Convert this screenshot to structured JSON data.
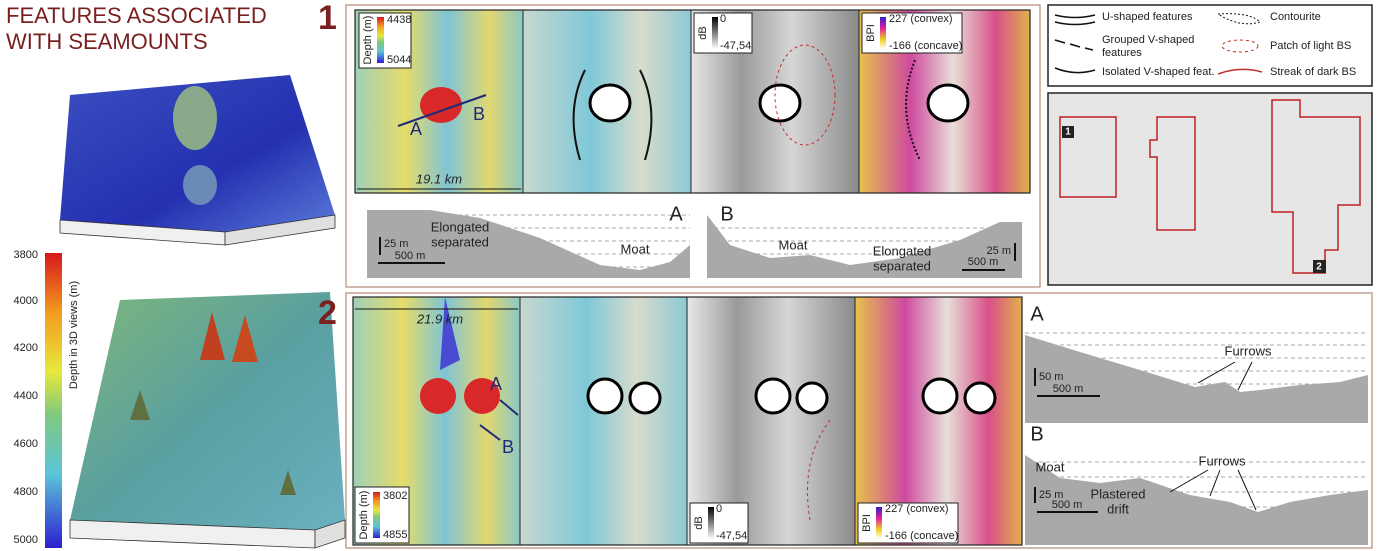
{
  "title_lines": [
    "FEATURES ASSOCIATED",
    "WITH SEAMOUNTS"
  ],
  "colorbar": {
    "label": "Depth in 3D views (m)",
    "ticks": [
      "3800",
      "4000",
      "4200",
      "4400",
      "4600",
      "4800",
      "5000"
    ]
  },
  "panel1": {
    "number": "1",
    "scale": "19.1 km",
    "depth_legend": {
      "label": "Depth (m)",
      "max": "4438",
      "min": "5044"
    },
    "profile_ends": [
      "A",
      "B"
    ],
    "backscatter_legend": {
      "label": "dB",
      "max": "0",
      "min": "-47,54"
    },
    "bpi_legend": {
      "label": "BPI",
      "max": "227 (convex)",
      "min": "-166 (concave)"
    },
    "profile_a": {
      "letter": "A",
      "vscale": "25 m",
      "hscale": "500 m",
      "labels": [
        "Elongated",
        "separated",
        "Moat"
      ]
    },
    "profile_b": {
      "letter": "B",
      "vscale": "25 m",
      "hscale": "500 m",
      "labels": [
        "Moat",
        "Elongated",
        "separated"
      ]
    }
  },
  "panel2": {
    "number": "2",
    "scale": "21.9 km",
    "depth_legend": {
      "label": "Depth (m)",
      "max": "3802",
      "min": "4855"
    },
    "profile_ends": [
      "A",
      "B"
    ],
    "backscatter_legend": {
      "label": "dB",
      "max": "0",
      "min": "-47,54"
    },
    "bpi_legend": {
      "label": "BPI",
      "max": "227 (convex)",
      "min": "-166 (concave)"
    },
    "profile_a": {
      "letter": "A",
      "vscale": "50 m",
      "hscale": "500 m",
      "labels": [
        "Furrows"
      ]
    },
    "profile_b": {
      "letter": "B",
      "vscale": "25 m",
      "hscale": "500 m",
      "labels": [
        "Moat",
        "Furrows",
        "Plastered",
        "drift"
      ]
    }
  },
  "legend": {
    "items": [
      "U-shaped features",
      "Grouped V-shaped",
      "features",
      "Isolated V-shaped feat.",
      "Contourite",
      "Patch of light BS",
      "Streak of dark BS"
    ]
  },
  "locator": {
    "labels": [
      "1",
      "2"
    ]
  }
}
